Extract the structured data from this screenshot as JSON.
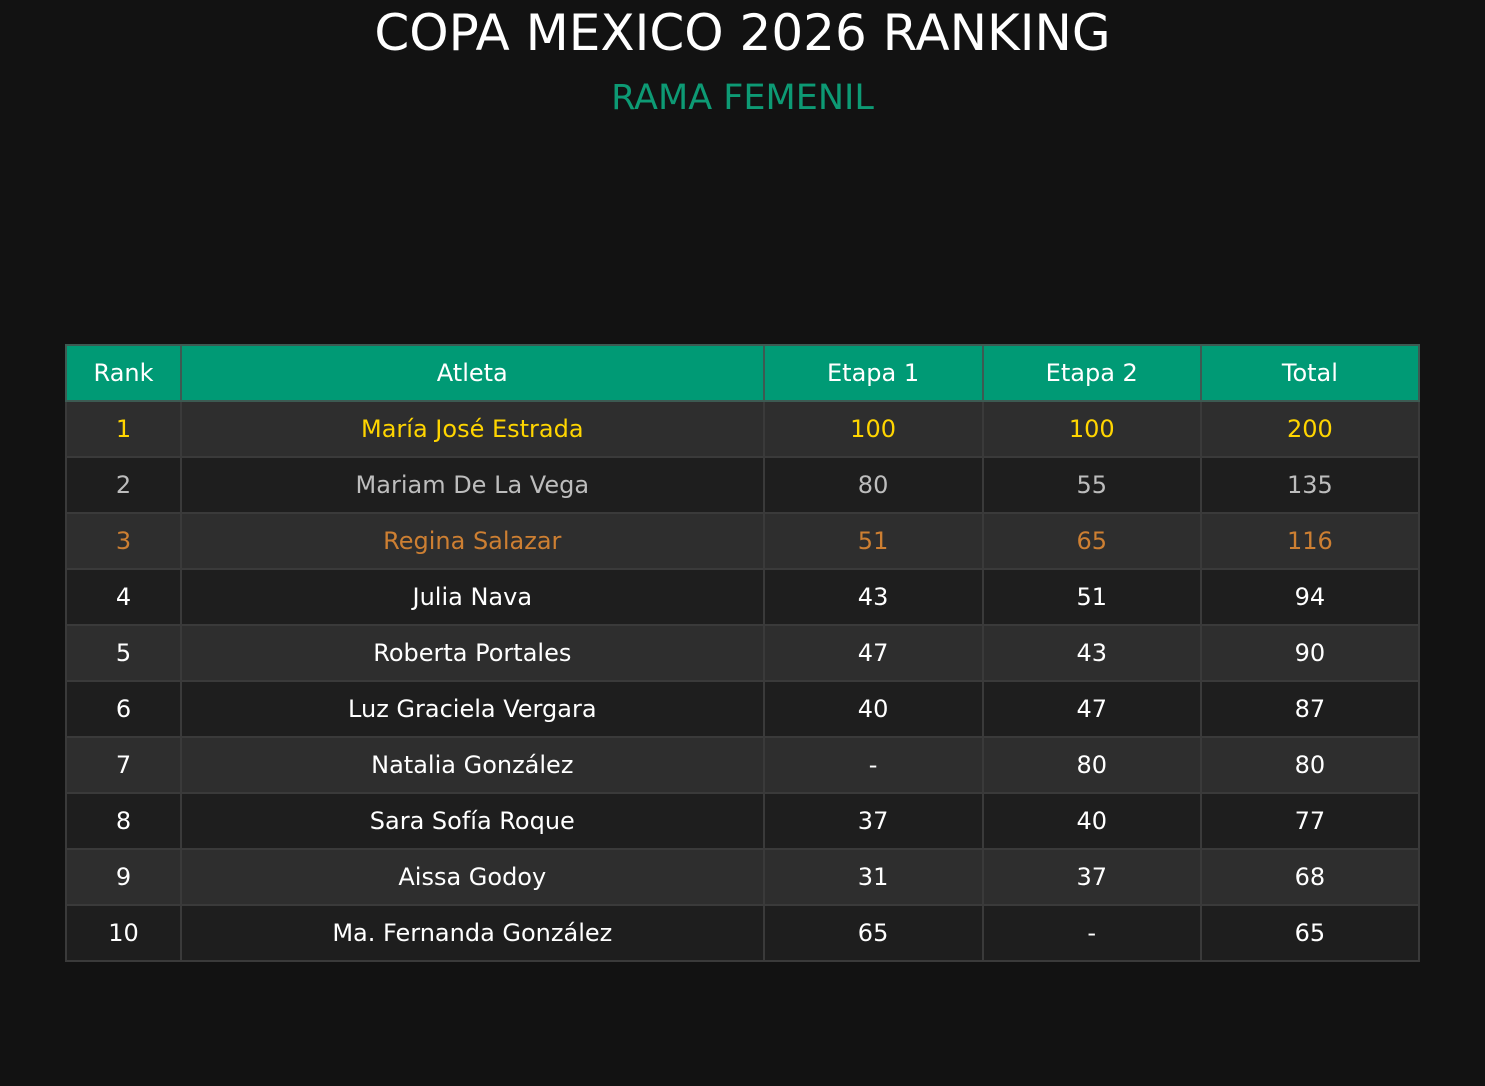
{
  "header": {
    "title": "COPA MEXICO 2026 RANKING",
    "subtitle": "RAMA FEMENIL"
  },
  "colors": {
    "background": "#121212",
    "accent_green": "#009a75",
    "gold": "#ffd500",
    "silver": "#bdbdbd",
    "bronze": "#cd7f32"
  },
  "table": {
    "columns": [
      "Rank",
      "Atleta",
      "Etapa 1",
      "Etapa 2",
      "Total"
    ],
    "rows": [
      {
        "rank": "1",
        "atleta": "María José Estrada",
        "etapa1": "100",
        "etapa2": "100",
        "total": "200",
        "medal": "gold"
      },
      {
        "rank": "2",
        "atleta": "Mariam De La Vega",
        "etapa1": "80",
        "etapa2": "55",
        "total": "135",
        "medal": "silver"
      },
      {
        "rank": "3",
        "atleta": "Regina Salazar",
        "etapa1": "51",
        "etapa2": "65",
        "total": "116",
        "medal": "bronze"
      },
      {
        "rank": "4",
        "atleta": "Julia Nava",
        "etapa1": "43",
        "etapa2": "51",
        "total": "94",
        "medal": "normal"
      },
      {
        "rank": "5",
        "atleta": "Roberta Portales",
        "etapa1": "47",
        "etapa2": "43",
        "total": "90",
        "medal": "normal"
      },
      {
        "rank": "6",
        "atleta": "Luz Graciela Vergara",
        "etapa1": "40",
        "etapa2": "47",
        "total": "87",
        "medal": "normal"
      },
      {
        "rank": "7",
        "atleta": "Natalia González",
        "etapa1": "-",
        "etapa2": "80",
        "total": "80",
        "medal": "normal"
      },
      {
        "rank": "8",
        "atleta": "Sara Sofía Roque",
        "etapa1": "37",
        "etapa2": "40",
        "total": "77",
        "medal": "normal"
      },
      {
        "rank": "9",
        "atleta": "Aissa Godoy",
        "etapa1": "31",
        "etapa2": "37",
        "total": "68",
        "medal": "normal"
      },
      {
        "rank": "10",
        "atleta": "Ma. Fernanda González",
        "etapa1": "65",
        "etapa2": "-",
        "total": "65",
        "medal": "normal"
      }
    ]
  }
}
